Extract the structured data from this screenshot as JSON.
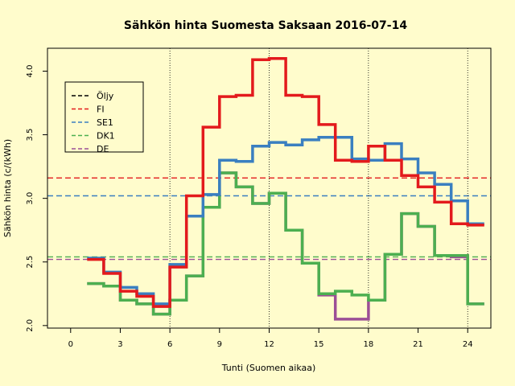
{
  "chart_data": {
    "type": "line",
    "title": "Sähkön hinta Suomesta Saksaan 2016-07-14",
    "xlabel": "Tunti (Suomen aikaa)",
    "ylabel": "Sähkön hinta (c/(kWh)",
    "xlim": [
      -1.4,
      25.4
    ],
    "ylim": [
      1.98,
      4.18
    ],
    "x_ticks": [
      0,
      3,
      6,
      9,
      12,
      15,
      18,
      21,
      24
    ],
    "y_ticks": [
      2.0,
      2.5,
      3.0,
      3.5,
      4.0
    ],
    "vertical_gridlines_at": [
      6,
      12,
      18,
      24
    ],
    "step_style": "each hour value drawn from x-1 to x",
    "x": [
      2,
      3,
      4,
      5,
      6,
      7,
      8,
      9,
      10,
      11,
      12,
      13,
      14,
      15,
      16,
      17,
      18,
      19,
      20,
      21,
      22,
      23,
      24,
      25
    ],
    "series": [
      {
        "name": "Öljy",
        "color": "#000000",
        "values": null
      },
      {
        "name": "FI",
        "color": "#e31a1c",
        "mean": 3.16,
        "values": [
          2.52,
          2.41,
          2.27,
          2.23,
          2.15,
          2.46,
          3.02,
          3.56,
          3.8,
          3.81,
          4.09,
          4.1,
          3.81,
          3.8,
          3.58,
          3.3,
          3.29,
          3.41,
          3.3,
          3.18,
          3.09,
          2.97,
          2.8,
          2.79
        ]
      },
      {
        "name": "SE1",
        "color": "#3a7fc0",
        "mean": 3.02,
        "values": [
          2.53,
          2.42,
          2.3,
          2.25,
          2.17,
          2.48,
          2.86,
          3.03,
          3.3,
          3.29,
          3.41,
          3.44,
          3.42,
          3.46,
          3.48,
          3.48,
          3.31,
          3.3,
          3.43,
          3.31,
          3.2,
          3.11,
          2.98,
          2.8
        ]
      },
      {
        "name": "DK1",
        "color": "#4caf50",
        "mean": 2.54,
        "values": [
          2.33,
          2.31,
          2.2,
          2.17,
          2.09,
          2.2,
          2.39,
          2.93,
          3.2,
          3.09,
          2.96,
          3.04,
          2.75,
          2.49,
          2.25,
          2.27,
          2.24,
          2.2,
          2.56,
          2.88,
          2.78,
          2.55,
          2.55,
          2.17
        ]
      },
      {
        "name": "DE",
        "color": "#9c4f96",
        "mean": 2.52,
        "values": [
          2.33,
          2.31,
          2.2,
          2.17,
          2.09,
          2.2,
          2.39,
          2.93,
          3.2,
          3.09,
          2.96,
          3.04,
          2.75,
          2.49,
          2.24,
          2.05,
          2.05,
          2.2,
          2.56,
          2.88,
          2.78,
          2.55,
          2.54,
          2.17
        ]
      }
    ],
    "legend_position": "top-left",
    "legend_line_style": "dashed",
    "grid": false
  }
}
